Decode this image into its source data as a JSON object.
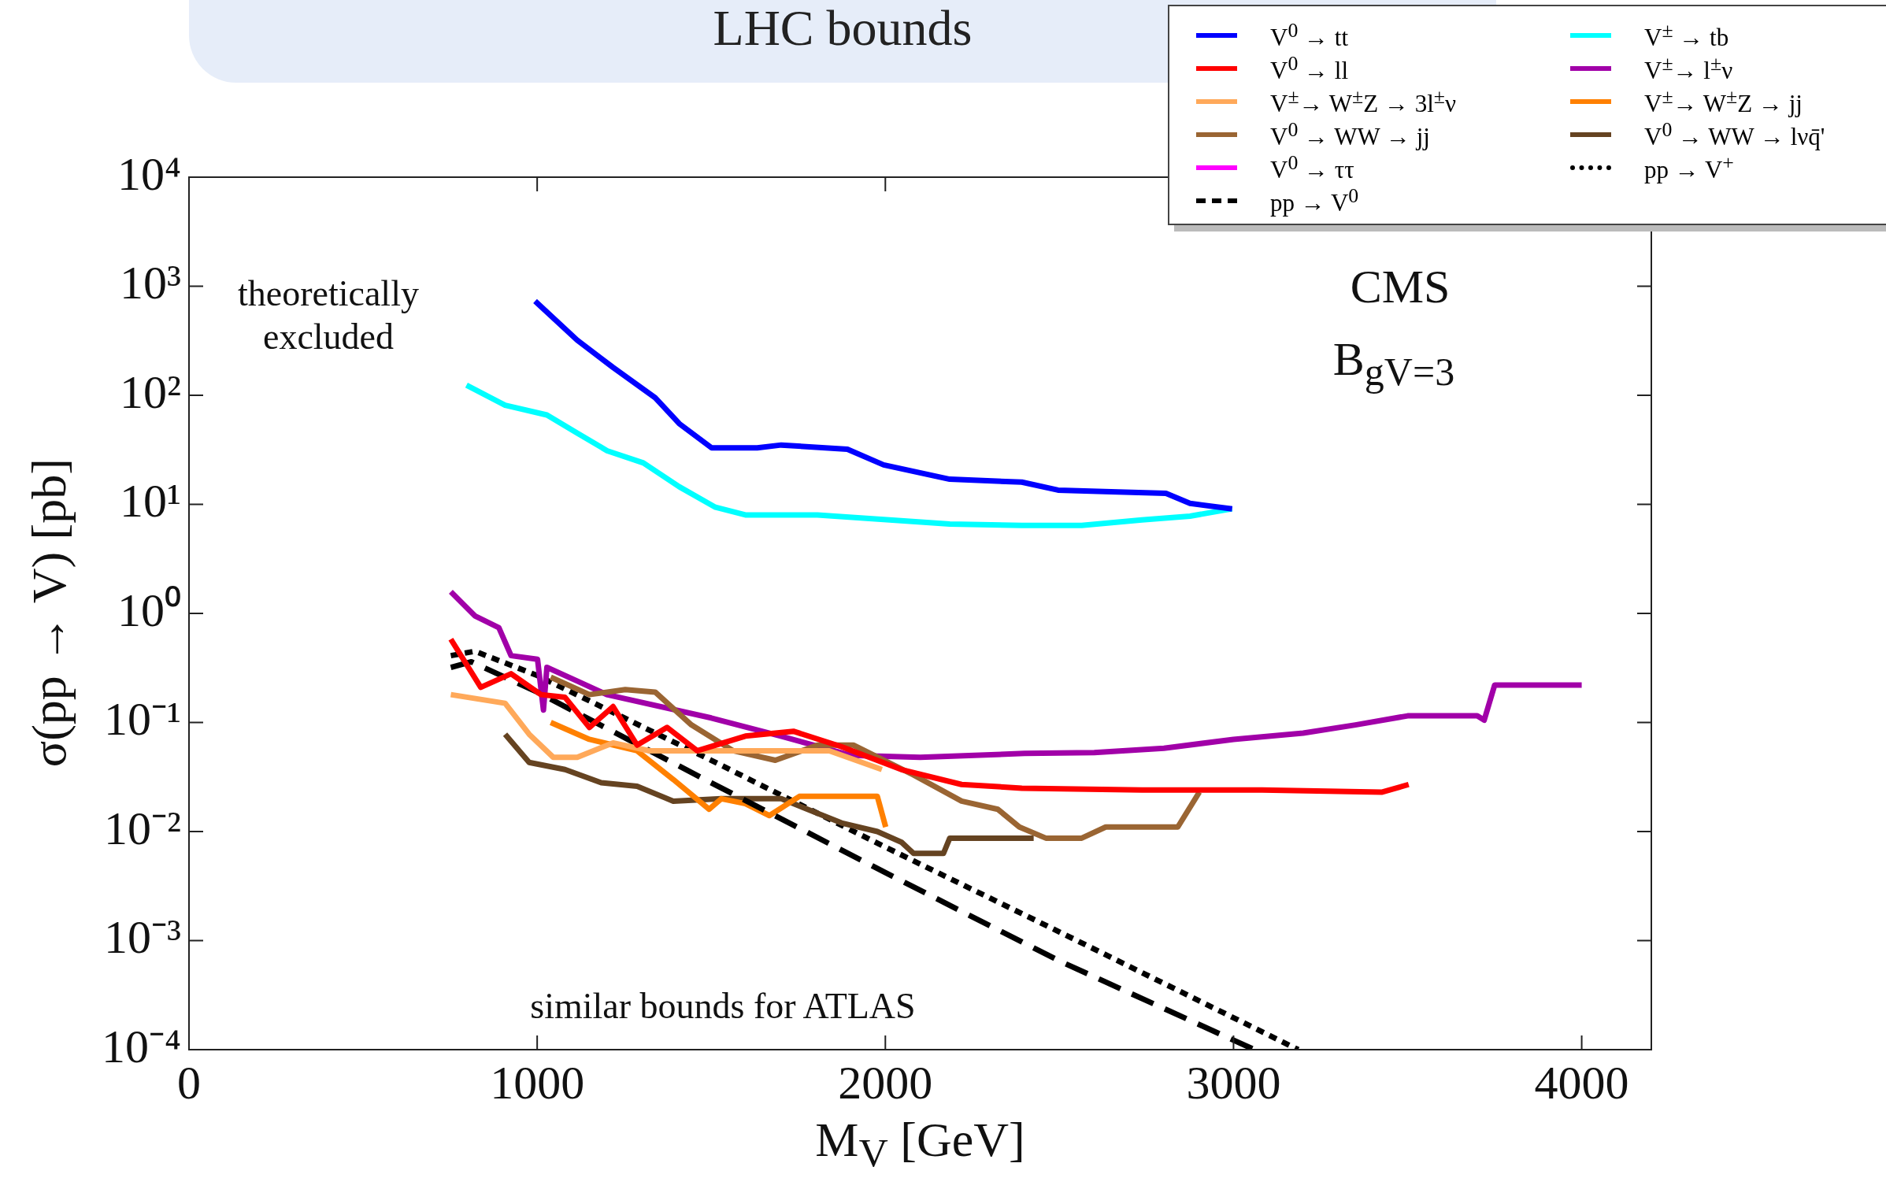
{
  "chart_data": {
    "type": "line",
    "title": "LHC bounds",
    "xlabel": "M$_{V}$ [GeV]",
    "ylabel": "σ(pp → V) [pb]",
    "xlim": [
      0,
      4200
    ],
    "xticks": [
      0,
      1000,
      2000,
      3000,
      4000
    ],
    "ylim": [
      0.0001,
      10000
    ],
    "yticks": [
      {
        "value": 0.0001,
        "label": "10⁻⁴"
      },
      {
        "value": 0.001,
        "label": "10⁻³"
      },
      {
        "value": 0.01,
        "label": "10⁻²"
      },
      {
        "value": 0.1,
        "label": "10⁻¹"
      },
      {
        "value": 1,
        "label": "10⁰"
      },
      {
        "value": 10,
        "label": "10¹"
      },
      {
        "value": 100,
        "label": "10²"
      },
      {
        "value": 1000,
        "label": "10³"
      },
      {
        "value": 10000,
        "label": "10⁴"
      }
    ],
    "log": "y",
    "grid": false,
    "legend": "top right",
    "marker": "none",
    "annotations": [
      "theoretically excluded",
      "CMS",
      "B$_{gV=3}$",
      "similar bounds for ATLAS"
    ],
    "series": [
      {
        "name": "V$^{0}$ → tt",
        "color": "#0000ff",
        "x": [
          994,
          1115,
          1218,
          1339,
          1408,
          1501,
          1632,
          1701,
          1891,
          1995,
          2185,
          2392,
          2496,
          2668,
          2806,
          2875,
          2996
        ],
        "values": [
          730,
          320,
          180,
          95,
          55,
          33,
          33,
          35,
          32,
          23,
          17,
          16,
          13.5,
          13,
          12.6,
          10.2,
          9.1
        ]
      },
      {
        "name": "V$^{0}$ → ll",
        "color": "#ff0000",
        "x": [
          752,
          838,
          925,
          1011,
          1080,
          1150,
          1218,
          1287,
          1373,
          1460,
          1598,
          1736,
          1874,
          2046,
          2219,
          2392,
          2737,
          3082,
          3427,
          3503
        ],
        "values": [
          0.58,
          0.21,
          0.28,
          0.18,
          0.17,
          0.09,
          0.14,
          0.062,
          0.09,
          0.055,
          0.075,
          0.083,
          0.06,
          0.037,
          0.027,
          0.025,
          0.024,
          0.024,
          0.023,
          0.027
        ]
      },
      {
        "name": "V$^{±}$→ W$^{±}$Z → 3l$^{±}$ν",
        "color": "#ffa95a",
        "x": [
          752,
          908,
          977,
          1046,
          1115,
          1218,
          1322,
          1460,
          1701,
          1839,
          1990
        ],
        "values": [
          0.18,
          0.15,
          0.078,
          0.048,
          0.048,
          0.065,
          0.055,
          0.055,
          0.055,
          0.055,
          0.037
        ]
      },
      {
        "name": "V$^{0}$ → WW → jj",
        "color": "#9a6533",
        "x": [
          1039,
          1150,
          1253,
          1339,
          1443,
          1563,
          1684,
          1805,
          1908,
          2081,
          2219,
          2323,
          2385,
          2461,
          2564,
          2633,
          2840,
          2902
        ],
        "values": [
          0.26,
          0.18,
          0.2,
          0.19,
          0.095,
          0.055,
          0.045,
          0.062,
          0.062,
          0.033,
          0.019,
          0.016,
          0.011,
          0.0087,
          0.0087,
          0.011,
          0.011,
          0.023
        ]
      },
      {
        "name": "V$^{0}$ → ττ",
        "color": "#ff00ff"
      },
      {
        "name": "pp → V$^{0}$",
        "color": "#000000",
        "line_style": "dashed",
        "x": [
          752,
          811,
          1000,
          1500,
          2000,
          2500,
          3060
        ],
        "values": [
          0.32,
          0.36,
          0.19,
          0.028,
          0.0042,
          0.00065,
          0.0001
        ]
      },
      {
        "name": "V$^{±}$ → tb",
        "color": "#00ffff",
        "x": [
          797,
          908,
          1028,
          1115,
          1201,
          1305,
          1408,
          1512,
          1598,
          1805,
          2012,
          2185,
          2392,
          2564,
          2737,
          2875,
          2996
        ],
        "values": [
          124,
          81,
          66,
          45,
          31,
          24,
          14.5,
          9.4,
          8,
          8,
          7.2,
          6.6,
          6.4,
          6.4,
          7.2,
          7.8,
          9.1
        ]
      },
      {
        "name": "V$^{±}$→ l$^{±}$ν",
        "color": "#a100a8",
        "x": [
          752,
          821,
          890,
          925,
          1001,
          1018,
          1028,
          1115,
          1200,
          1500,
          1700,
          1900,
          2100,
          2400,
          2600,
          2800,
          3000,
          3200,
          3350,
          3500,
          3700,
          3720,
          3750,
          4000
        ],
        "values": [
          1.58,
          0.95,
          0.74,
          0.41,
          0.38,
          0.13,
          0.32,
          0.24,
          0.18,
          0.11,
          0.075,
          0.05,
          0.048,
          0.052,
          0.053,
          0.058,
          0.07,
          0.08,
          0.095,
          0.115,
          0.115,
          0.105,
          0.22,
          0.22
        ]
      },
      {
        "name": "V$^{±}$→ W$^{±}$Z → jj",
        "color": "#ff8000",
        "x": [
          1039,
          1150,
          1287,
          1391,
          1494,
          1529,
          1598,
          1667,
          1753,
          1874,
          1977,
          2001
        ],
        "values": [
          0.1,
          0.07,
          0.055,
          0.03,
          0.016,
          0.02,
          0.018,
          0.014,
          0.021,
          0.021,
          0.021,
          0.011
        ]
      },
      {
        "name": "V$^{0}$ → WW → lνq̄'",
        "color": "#654321",
        "x": [
          908,
          977,
          1080,
          1184,
          1287,
          1391,
          1529,
          1701,
          1874,
          1977,
          2046,
          2081,
          2167,
          2185,
          2426
        ],
        "values": [
          0.078,
          0.043,
          0.037,
          0.028,
          0.026,
          0.019,
          0.02,
          0.02,
          0.012,
          0.01,
          0.008,
          0.0063,
          0.0063,
          0.0087,
          0.0087
        ]
      },
      {
        "name": "pp → V$^{+}$",
        "color": "#000000",
        "line_style": "dotted",
        "x": [
          752,
          821,
          1000,
          1500,
          2000,
          2500,
          3186
        ],
        "values": [
          0.41,
          0.45,
          0.27,
          0.045,
          0.0072,
          0.0012,
          0.0001
        ]
      }
    ]
  }
}
